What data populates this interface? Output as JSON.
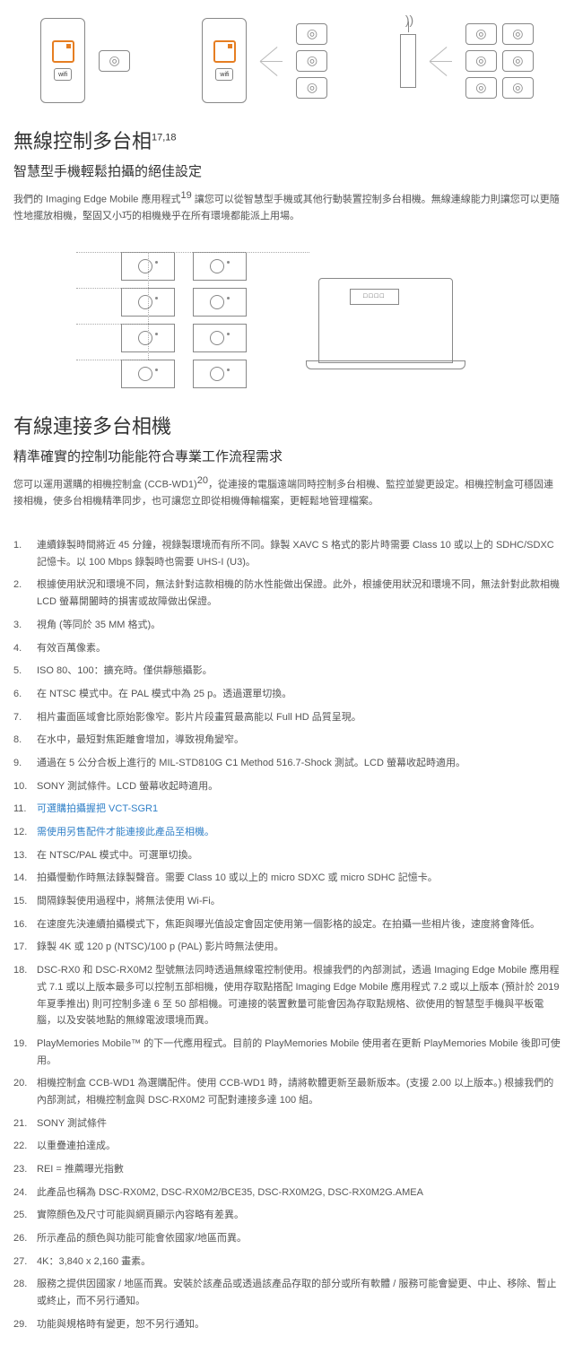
{
  "section1": {
    "title": "無線控制多台相",
    "sup": "17,18",
    "subtitle": "智慧型手機輕鬆拍攝的絕佳設定",
    "desc_pre": "我們的 Imaging Edge Mobile 應用程式",
    "desc_sup": "19",
    "desc_post": " 讓您可以從智慧型手機或其他行動裝置控制多台相機。無線連線能力則讓您可以更隨性地擺放相機，堅固又小巧的相機幾乎在所有環境都能派上用場。"
  },
  "section2": {
    "title": "有線連接多台相機",
    "subtitle_accent": "精準確實的",
    "subtitle_rest": "控制功能能符合專業工作流程需求",
    "desc_pre": "您可以運用選購的相機控制盒 (CCB-WD1)",
    "desc_sup": "20",
    "desc_post": "，從連接的電腦遠端同時控制多台相機、監控並變更設定。相機控制盒可穩固連接相機，使多台相機精準同步，也可讓您立即從相機傳輸檔案，更輕鬆地管理檔案。"
  },
  "control_box_label": "□□□□",
  "notes": [
    "連續錄製時間將近 45 分鐘，視錄製環境而有所不同。錄製 XAVC S 格式的影片時需要 Class 10 或以上的 SDHC/SDXC 記憶卡。以 100 Mbps 錄製時也需要 UHS-I (U3)。",
    "根據使用狀況和環境不同，無法針對這款相機的防水性能做出保證。此外，根據使用狀況和環境不同，無法針對此款相機 LCD 螢幕開闔時的損害或故障做出保證。",
    "視角 (等同於 35 MM 格式)。",
    "有效百萬像素。",
    "ISO 80、100：擴充時。僅供靜態攝影。",
    "在 NTSC 模式中。在 PAL 模式中為 25 p。透過選單切換。",
    "相片畫面區域會比原始影像窄。影片片段畫質最高能以 Full HD 品質呈現。",
    "在水中，最短對焦距離會增加，導致視角變窄。",
    "通過在 5 公分合板上進行的 MIL-STD810G C1 Method 516.7-Shock 測試。LCD 螢幕收起時適用。",
    "SONY 測試條件。LCD 螢幕收起時適用。",
    "可選購拍攝握把 VCT-SGR1",
    "需使用另售配件才能連接此產品至相機。",
    "在 NTSC/PAL 模式中。可選單切換。",
    "拍攝慢動作時無法錄製聲音。需要 Class 10 或以上的 micro SDXC 或 micro SDHC 記憶卡。",
    "間隔錄製使用過程中，將無法使用 Wi-Fi。",
    "在速度先決連續拍攝模式下，焦距與曝光值設定會固定使用第一個影格的設定。在拍攝一些相片後，速度將會降低。",
    "錄製 4K 或 120 p (NTSC)/100 p (PAL) 影片時無法使用。",
    "DSC-RX0 和 DSC-RX0M2 型號無法同時透過無線電控制使用。根據我們的內部測試，透過 Imaging Edge Mobile 應用程式 7.1 或以上版本最多可以控制五部相機，使用存取點搭配 Imaging Edge Mobile 應用程式 7.2 或以上版本 (預計於 2019 年夏季推出) 則可控制多達 6 至 50 部相機。可連接的裝置數量可能會因為存取點規格、欲使用的智慧型手機與平板電腦，以及安裝地點的無線電波環境而異。",
    "PlayMemories Mobile™ 的下一代應用程式。目前的 PlayMemories Mobile 使用者在更新 PlayMemories Mobile 後即可使用。",
    "相機控制盒 CCB-WD1 為選購配件。使用 CCB-WD1 時，請將軟體更新至最新版本。(支援 2.00 以上版本。) 根據我們的內部測試，相機控制盒與 DSC-RX0M2 可配對連接多達 100 組。",
    "SONY 測試條件",
    "以重疊連拍達成。",
    "REI = 推薦曝光指數",
    "此產品也稱為 DSC-RX0M2, DSC-RX0M2/BCE35, DSC-RX0M2G, DSC-RX0M2G.AMEA",
    "實際顏色及尺寸可能與網頁顯示內容略有差異。",
    "所示產品的顏色與功能可能會依國家/地區而異。",
    "4K：3,840 x 2,160 畫素。",
    "服務之提供因國家 / 地區而異。安裝於該產品或透過該產品存取的部分或所有軟體 / 服務可能會變更、中止、移除、暫止或終止，而不另行通知。",
    "功能與規格時有變更，恕不另行通知。"
  ]
}
